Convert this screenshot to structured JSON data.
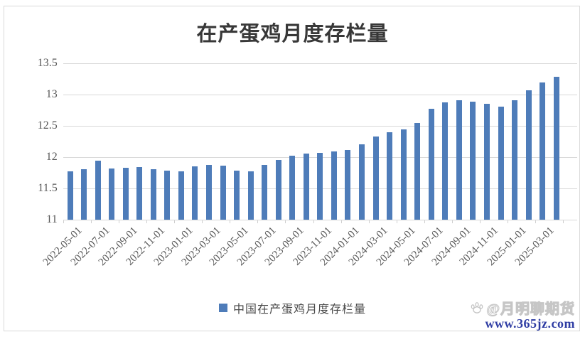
{
  "chart_data": {
    "type": "bar",
    "title": "在产蛋鸡月度存栏量",
    "series": [
      {
        "name": "中国在产蛋鸡月度存栏量",
        "values": [
          11.77,
          11.81,
          11.94,
          11.82,
          11.83,
          11.84,
          11.81,
          11.79,
          11.77,
          11.85,
          11.88,
          11.86,
          11.79,
          11.77,
          11.87,
          11.96,
          12.02,
          12.06,
          12.07,
          12.09,
          12.11,
          12.2,
          12.33,
          12.4,
          12.44,
          12.55,
          12.77,
          12.88,
          12.91,
          12.89,
          12.85,
          12.81,
          12.91,
          13.07,
          13.19,
          13.28
        ]
      }
    ],
    "x": [
      "2022-05-01",
      "2022-06-01",
      "2022-07-01",
      "2022-08-01",
      "2022-09-01",
      "2022-10-01",
      "2022-11-01",
      "2022-12-01",
      "2023-01-01",
      "2023-02-01",
      "2023-03-01",
      "2023-04-01",
      "2023-05-01",
      "2023-06-01",
      "2023-07-01",
      "2023-08-01",
      "2023-09-01",
      "2023-10-01",
      "2023-11-01",
      "2023-12-01",
      "2024-01-01",
      "2024-02-01",
      "2024-03-01",
      "2024-04-01",
      "2024-05-01",
      "2024-06-01",
      "2024-07-01",
      "2024-08-01",
      "2024-09-01",
      "2024-10-01",
      "2024-11-01",
      "2024-12-01",
      "2025-01-01",
      "2025-02-01",
      "2025-03-01",
      "2025-04-01"
    ],
    "x_tick_labels": [
      "2022-05-01",
      "2022-07-01",
      "2022-09-01",
      "2022-11-01",
      "2023-01-01",
      "2023-03-01",
      "2023-05-01",
      "2023-07-01",
      "2023-09-01",
      "2023-11-01",
      "2024-01-01",
      "2024-03-01",
      "2024-05-01",
      "2024-07-01",
      "2024-09-01",
      "2024-11-01",
      "2025-01-01",
      "2025-03-01"
    ],
    "x_label_interval": 2,
    "ylim": [
      11,
      13.5
    ],
    "y_ticks": [
      11,
      11.5,
      12,
      12.5,
      13,
      13.5
    ],
    "y_tick_labels": [
      "11",
      "11.5",
      "12",
      "12.5",
      "13",
      "13.5"
    ],
    "grid": "horizontal",
    "legend_position": "bottom",
    "bar_color": "#4e7cb9"
  },
  "title": {
    "text": "在产蛋鸡月度存栏量"
  },
  "legend": {
    "label": "中国在产蛋鸡月度存栏量"
  },
  "watermark": {
    "handle": "@月明聊期货",
    "url": "www.365jz.com",
    "url_color": "#2e3ca3"
  },
  "colors": {
    "bar": "#4e7cb9",
    "gridline": "#d9d9d9",
    "axis_text": "#595959",
    "title_text": "#383838"
  }
}
